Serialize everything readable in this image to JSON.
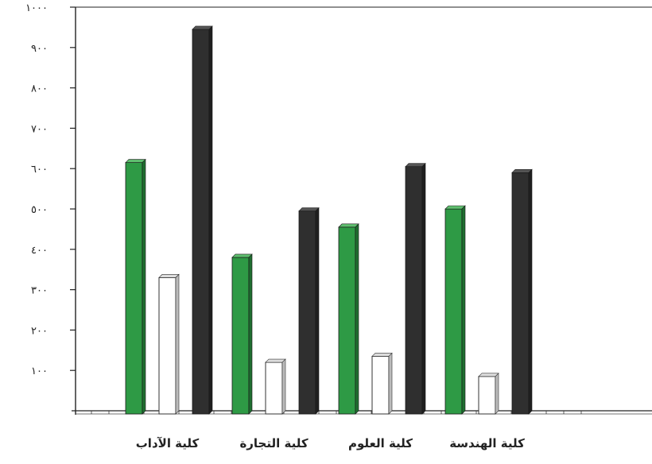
{
  "chart_data": {
    "type": "bar",
    "categories": [
      "كلية الآداب",
      "كلية التجارة",
      "كلية العلوم",
      "كلية الهندسة"
    ],
    "series": [
      {
        "values": [
          615,
          380,
          455,
          500
        ],
        "color": "#2e9a45"
      },
      {
        "values": [
          330,
          120,
          135,
          85
        ],
        "color": "#ffffff"
      },
      {
        "values": [
          945,
          495,
          605,
          590
        ],
        "color": "#2f2f2f"
      }
    ],
    "ylim": [
      0,
      1000
    ],
    "yticks": [
      100,
      200,
      300,
      400,
      500,
      600,
      700,
      800,
      900,
      1000
    ],
    "ytick_labels": [
      "١٠٠",
      "٢٠٠",
      "٣٠٠",
      "٤٠٠",
      "٥٠٠",
      "٦٠٠",
      "٧٠٠",
      "٨٠٠",
      "٩٠٠",
      "١٠٠٠"
    ],
    "grid": false,
    "legend": "none",
    "title": "",
    "xlabel": "",
    "ylabel": ""
  }
}
